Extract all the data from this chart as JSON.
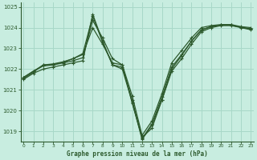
{
  "title": "Graphe pression niveau de la mer (hPa)",
  "bg_color": "#c8ede0",
  "grid_color": "#a8d8c8",
  "line_color": "#2d5a2d",
  "ylim": [
    1018.5,
    1025.2
  ],
  "xlim": [
    -0.3,
    23.3
  ],
  "yticks": [
    1019,
    1020,
    1021,
    1022,
    1023,
    1024,
    1025
  ],
  "xticks": [
    0,
    1,
    2,
    3,
    4,
    5,
    6,
    7,
    8,
    9,
    10,
    11,
    12,
    13,
    14,
    15,
    16,
    17,
    18,
    19,
    20,
    21,
    22,
    23
  ],
  "series": [
    [
      1021.5,
      1021.8,
      1022.0,
      1022.1,
      1022.2,
      1022.3,
      1022.4,
      1024.65,
      1023.35,
      1022.2,
      1022.0,
      1020.4,
      1018.6,
      1019.3,
      1020.5,
      1021.9,
      1022.5,
      1023.2,
      1023.8,
      1024.0,
      1024.1,
      1024.1,
      1024.0,
      1023.9
    ],
    [
      1021.6,
      1021.9,
      1022.15,
      1022.2,
      1022.3,
      1022.4,
      1022.55,
      1024.35,
      1023.5,
      1022.5,
      1022.2,
      1020.7,
      1018.8,
      1019.5,
      1020.8,
      1022.3,
      1022.9,
      1023.5,
      1024.0,
      1024.1,
      1024.15,
      1024.15,
      1024.05,
      1024.0
    ],
    [
      1021.6,
      1021.9,
      1022.2,
      1022.25,
      1022.35,
      1022.5,
      1022.7,
      1024.0,
      1023.2,
      1022.3,
      1022.2,
      1020.35,
      1018.7,
      1019.15,
      1020.5,
      1022.0,
      1022.65,
      1023.35,
      1023.9,
      1024.05,
      1024.12,
      1024.12,
      1024.02,
      1023.93
    ],
    [
      1021.55,
      1021.85,
      1022.2,
      1022.22,
      1022.32,
      1022.5,
      1022.75,
      1024.55,
      1023.3,
      1022.2,
      1022.1,
      1020.5,
      1018.65,
      1019.35,
      1020.65,
      1022.1,
      1022.7,
      1023.35,
      1023.88,
      1024.05,
      1024.12,
      1024.12,
      1024.02,
      1023.95
    ]
  ]
}
